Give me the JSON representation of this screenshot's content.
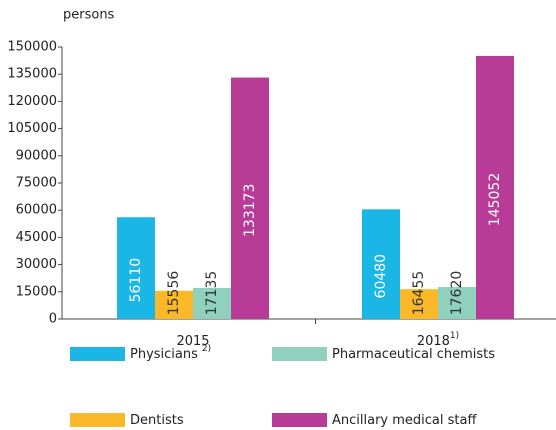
{
  "chart_data": {
    "type": "bar",
    "y_unit": "persons",
    "categories": [
      "2015",
      "2018"
    ],
    "category_footnotes": [
      null,
      "1)"
    ],
    "series": [
      {
        "name": "Physicians",
        "footnote": "2)",
        "color": "#1ab7e6",
        "values": [
          56110,
          60480
        ]
      },
      {
        "name": "Dentists",
        "color": "#fbb829",
        "values": [
          15556,
          16455
        ]
      },
      {
        "name": "Pharmaceutical chemists",
        "color": "#8fd1bc",
        "values": [
          17135,
          17620
        ]
      },
      {
        "name": "Ancillary medical staff",
        "color": "#b83c97",
        "values": [
          133173,
          145052
        ]
      }
    ],
    "ylim": [
      0,
      150000
    ],
    "yticks": [
      0,
      15000,
      30000,
      45000,
      60000,
      75000,
      90000,
      105000,
      120000,
      135000,
      150000
    ],
    "grid": false
  }
}
